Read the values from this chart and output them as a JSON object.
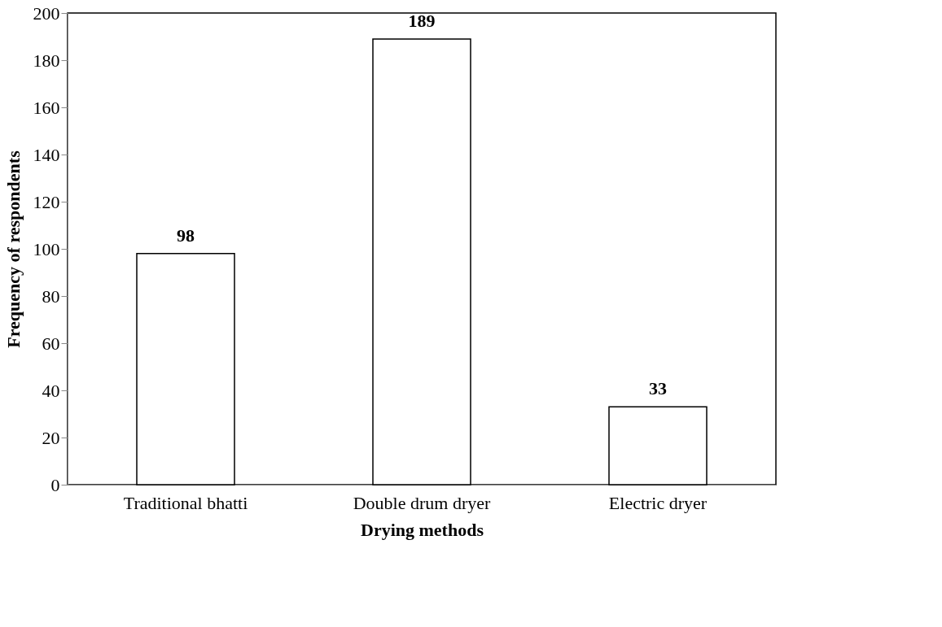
{
  "chart_data": {
    "type": "bar",
    "xlabel": "Drying methods",
    "ylabel": "Frequency of respondents",
    "categories": [
      "Traditional bhatti",
      "Double drum dryer",
      "Electric dryer"
    ],
    "values": [
      98,
      189,
      33
    ],
    "colors": [
      "#ffffff",
      "#ffffff",
      "#ffffff"
    ],
    "ylim": [
      0,
      200
    ],
    "yticks": [
      0,
      20,
      40,
      60,
      80,
      100,
      120,
      140,
      160,
      180,
      200
    ],
    "data_labels": true,
    "grid": false
  }
}
